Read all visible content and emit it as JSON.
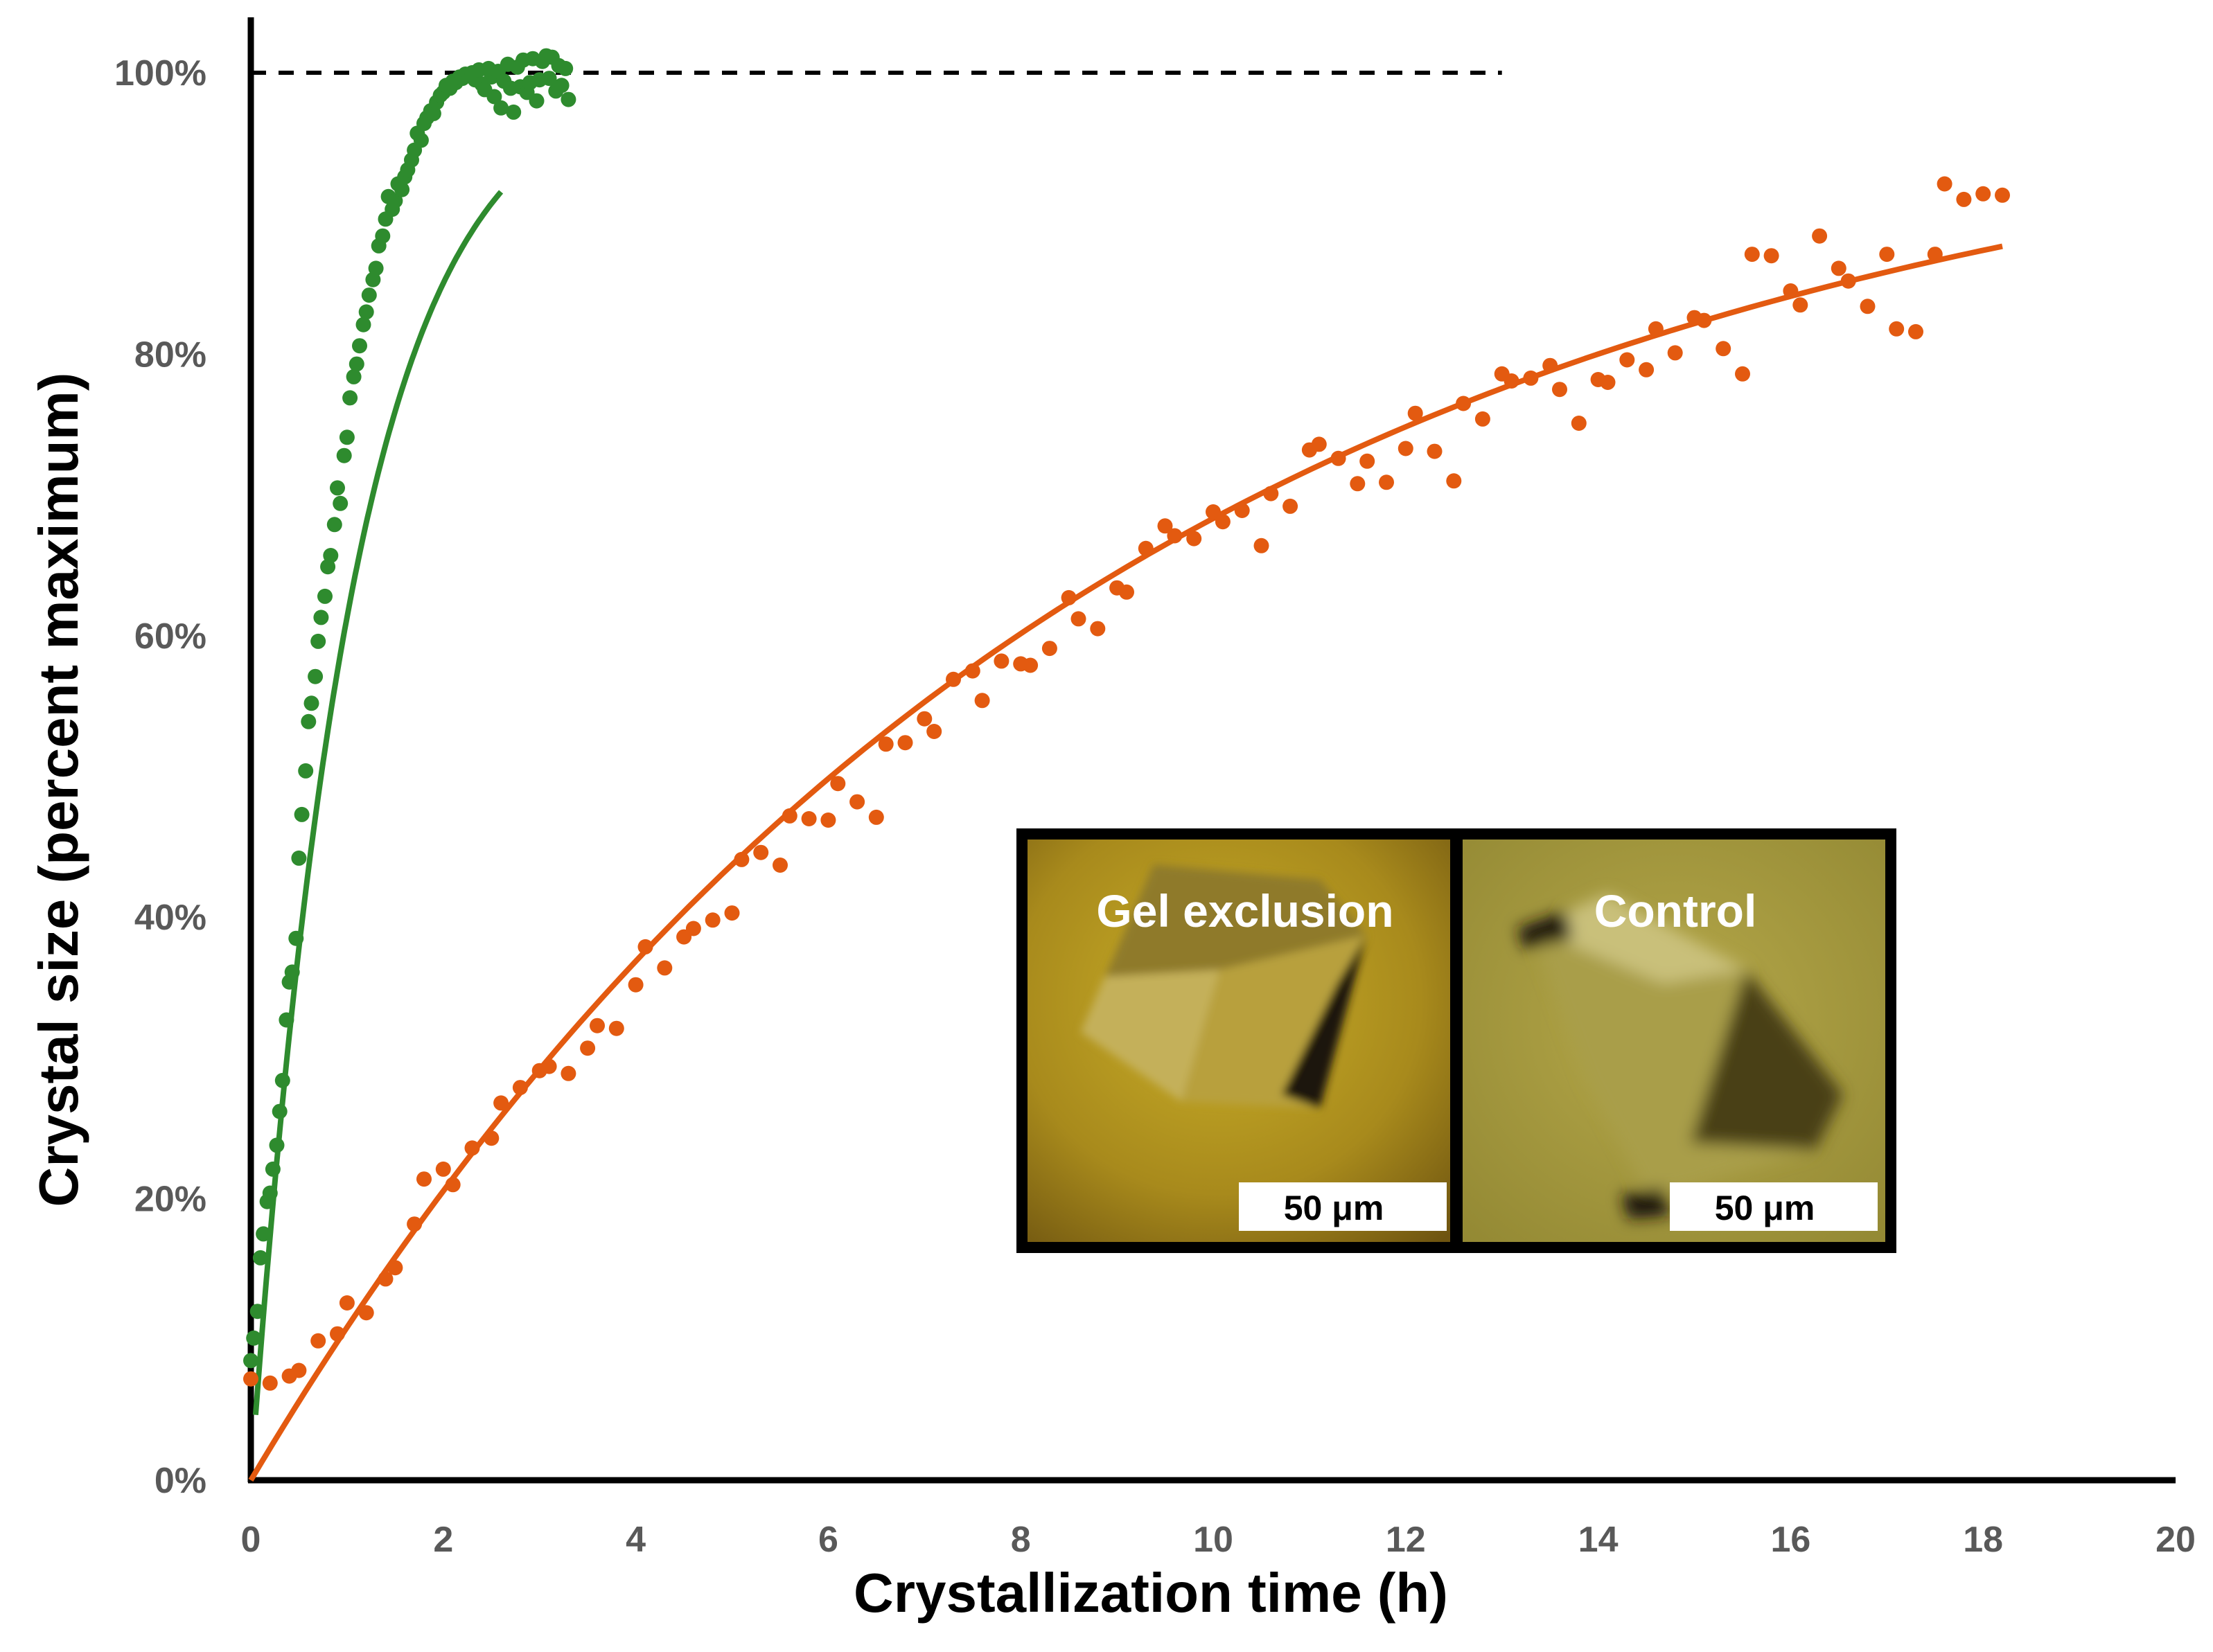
{
  "chart_data": {
    "type": "scatter",
    "xlabel": "Crystallization time (h)",
    "ylabel": "Crystal size (percent maximum)",
    "xlim": [
      0,
      20
    ],
    "ylim": [
      0,
      100
    ],
    "x_ticks": [
      "0",
      "2",
      "4",
      "6",
      "8",
      "10",
      "12",
      "14",
      "16",
      "18",
      "20"
    ],
    "x_tick_values": [
      0,
      2,
      4,
      6,
      8,
      10,
      12,
      14,
      16,
      18,
      20
    ],
    "y_ticks": [
      "0%",
      "20%",
      "40%",
      "60%",
      "80%",
      "100%"
    ],
    "y_tick_values": [
      0,
      20,
      40,
      60,
      80,
      100
    ],
    "reference_line": {
      "y": 100,
      "x_range": [
        0,
        13
      ],
      "style": "dashed"
    },
    "series": [
      {
        "name": "Gel exclusion",
        "color": "#2E8B2E",
        "fit": {
          "model": "exponential_rise",
          "plateau": 100,
          "rate_per_h": 0.95,
          "x_range": [
            0.05,
            2.6
          ]
        },
        "x": [
          0.0,
          0.03,
          0.07,
          0.1,
          0.13,
          0.17,
          0.2,
          0.23,
          0.27,
          0.3,
          0.33,
          0.37,
          0.4,
          0.43,
          0.47,
          0.5,
          0.53,
          0.57,
          0.6,
          0.63,
          0.67,
          0.7,
          0.73,
          0.77,
          0.8,
          0.83,
          0.87,
          0.9,
          0.93,
          0.97,
          1.0,
          1.03,
          1.07,
          1.1,
          1.13,
          1.17,
          1.2,
          1.23,
          1.27,
          1.3,
          1.33,
          1.37,
          1.4,
          1.43,
          1.47,
          1.5,
          1.53,
          1.57,
          1.6,
          1.63,
          1.67,
          1.7,
          1.73,
          1.77,
          1.8,
          1.83,
          1.87,
          1.9,
          1.93,
          1.97,
          2.0,
          2.03,
          2.07,
          2.1,
          2.13,
          2.17,
          2.2,
          2.23,
          2.27,
          2.3,
          2.33,
          2.37,
          2.4,
          2.43,
          2.47,
          2.5,
          2.53,
          2.57,
          2.6,
          2.63,
          2.67,
          2.7,
          2.73,
          2.77,
          2.8,
          2.83,
          2.87,
          2.9,
          2.93,
          2.97,
          3.0,
          3.03,
          3.07,
          3.1,
          3.13,
          3.17,
          3.2,
          3.23,
          3.27,
          3.3
        ],
        "values": [
          8.5,
          10.1,
          12.0,
          15.8,
          17.5,
          19.8,
          20.4,
          22.1,
          23.8,
          26.2,
          28.4,
          32.7,
          35.4,
          36.1,
          38.5,
          44.2,
          47.3,
          50.4,
          53.9,
          55.2,
          57.1,
          59.6,
          61.3,
          62.8,
          64.9,
          65.7,
          67.9,
          70.5,
          69.4,
          72.8,
          74.1,
          76.9,
          78.4,
          79.3,
          80.6,
          82.1,
          83.0,
          84.2,
          85.3,
          86.1,
          87.7,
          88.4,
          89.6,
          91.2,
          90.3,
          90.9,
          92.1,
          91.7,
          92.6,
          93.1,
          93.8,
          94.5,
          95.7,
          95.2,
          96.4,
          96.8,
          97.3,
          97.1,
          97.9,
          98.4,
          98.6,
          99.1,
          98.9,
          99.4,
          99.3,
          99.7,
          99.6,
          99.9,
          99.8,
          100.0,
          99.5,
          100.2,
          99.2,
          98.8,
          100.3,
          99.7,
          98.3,
          100.1,
          97.5,
          99.4,
          100.6,
          98.9,
          97.2,
          100.4,
          99.0,
          100.9,
          98.6,
          99.3,
          101.0,
          98.0,
          99.5,
          100.8,
          101.2,
          99.6,
          101.1,
          98.7,
          100.5,
          99.1,
          100.3,
          98.1
        ]
      },
      {
        "name": "Control",
        "color": "#E35A10",
        "fit": {
          "model": "exponential_rise",
          "plateau": 100,
          "rate_per_h": 0.115,
          "x_range": [
            0,
            18.2
          ]
        },
        "x": [
          0.0,
          0.2,
          0.4,
          0.5,
          0.7,
          0.9,
          1.0,
          1.2,
          1.4,
          1.5,
          1.7,
          1.8,
          2.0,
          2.1,
          2.3,
          2.5,
          2.6,
          2.8,
          3.0,
          3.1,
          3.3,
          3.5,
          3.6,
          3.8,
          4.0,
          4.1,
          4.3,
          4.5,
          4.6,
          4.8,
          5.0,
          5.1,
          5.3,
          5.5,
          5.6,
          5.8,
          6.0,
          6.1,
          6.3,
          6.5,
          6.6,
          6.8,
          7.0,
          7.1,
          7.3,
          7.5,
          7.6,
          7.8,
          8.0,
          8.1,
          8.3,
          8.5,
          8.6,
          8.8,
          9.0,
          9.1,
          9.3,
          9.5,
          9.6,
          9.8,
          10.0,
          10.1,
          10.3,
          10.5,
          10.6,
          10.8,
          11.0,
          11.1,
          11.3,
          11.5,
          11.6,
          11.8,
          12.0,
          12.1,
          12.3,
          12.5,
          12.6,
          12.8,
          13.0,
          13.1,
          13.3,
          13.5,
          13.6,
          13.8,
          14.0,
          14.1,
          14.3,
          14.5,
          14.6,
          14.8,
          15.0,
          15.1,
          15.3,
          15.5,
          15.6,
          15.8,
          16.0,
          16.1,
          16.3,
          16.5,
          16.6,
          16.8,
          17.0,
          17.1,
          17.3,
          17.5,
          17.6,
          17.8,
          18.0,
          18.2
        ],
        "values": [
          7.2,
          6.9,
          7.4,
          7.8,
          9.9,
          10.4,
          12.6,
          11.9,
          14.3,
          15.1,
          18.2,
          21.4,
          22.1,
          21.0,
          23.6,
          24.3,
          26.8,
          27.9,
          29.1,
          29.4,
          28.9,
          30.7,
          32.3,
          32.1,
          35.2,
          37.9,
          36.4,
          38.6,
          39.2,
          39.8,
          40.3,
          44.1,
          44.6,
          43.7,
          47.2,
          47.0,
          46.9,
          49.5,
          48.2,
          47.1,
          52.3,
          52.4,
          54.1,
          53.2,
          56.9,
          57.5,
          55.4,
          58.2,
          58.0,
          57.9,
          59.1,
          62.7,
          61.2,
          60.5,
          63.4,
          63.1,
          66.2,
          67.8,
          67.1,
          66.9,
          68.8,
          68.1,
          68.9,
          66.4,
          70.1,
          69.2,
          73.2,
          73.6,
          72.6,
          70.8,
          72.4,
          70.9,
          73.3,
          75.8,
          73.1,
          71.0,
          76.5,
          75.4,
          78.6,
          78.1,
          78.3,
          79.2,
          77.5,
          75.1,
          78.2,
          78.0,
          79.6,
          78.9,
          81.8,
          80.1,
          82.6,
          82.4,
          80.4,
          78.6,
          87.1,
          87.0,
          84.5,
          83.5,
          88.4,
          86.1,
          85.2,
          83.4,
          87.1,
          81.8,
          81.6,
          87.1,
          92.1,
          91.0,
          91.4,
          91.3
        ]
      }
    ],
    "inset": {
      "panels": [
        {
          "label": "Gel exclusion",
          "scale_bar": "50 μm"
        },
        {
          "label": "Control",
          "scale_bar": "50 μm"
        }
      ]
    }
  }
}
